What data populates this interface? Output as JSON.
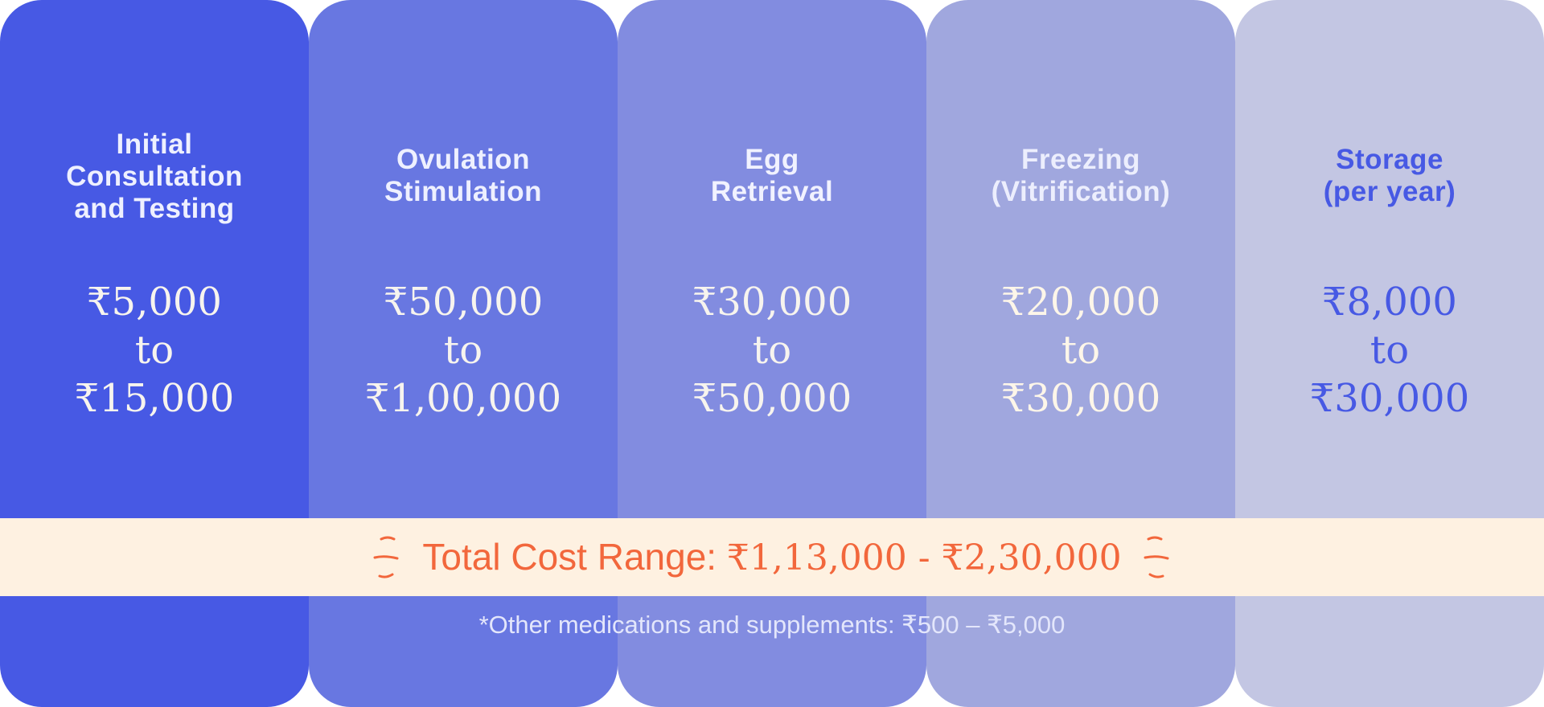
{
  "stages": [
    {
      "title_lines": [
        "Initial",
        "Consultation",
        "and Testing"
      ],
      "price_from": "₹5,000",
      "price_connector": "to",
      "price_to": "₹15,000",
      "background": "#4759e4"
    },
    {
      "title_lines": [
        "Ovulation",
        "Stimulation"
      ],
      "price_from": "₹50,000",
      "price_connector": "to",
      "price_to": "₹1,00,000",
      "background": "#6877e1"
    },
    {
      "title_lines": [
        "Egg",
        "Retrieval"
      ],
      "price_from": "₹30,000",
      "price_connector": "to",
      "price_to": "₹50,000",
      "background": "#828ce0"
    },
    {
      "title_lines": [
        "Freezing",
        "(Vitrification)"
      ],
      "price_from": "₹20,000",
      "price_connector": "to",
      "price_to": "₹30,000",
      "background": "#a0a7de"
    },
    {
      "title_lines": [
        "Storage",
        "(per year)"
      ],
      "price_from": "₹8,000",
      "price_connector": "to",
      "price_to": "₹30,000",
      "background": "#c3c6e3"
    }
  ],
  "total": {
    "label": "Total Cost Range:",
    "range": "₹1,13,000 - ₹2,30,000",
    "background": "#fef1e1",
    "color": "#f2673c",
    "decoration_icon": "sparkle-lines-icon"
  },
  "footnote": "*Other medications and supplements: ₹500 – ₹5,000"
}
